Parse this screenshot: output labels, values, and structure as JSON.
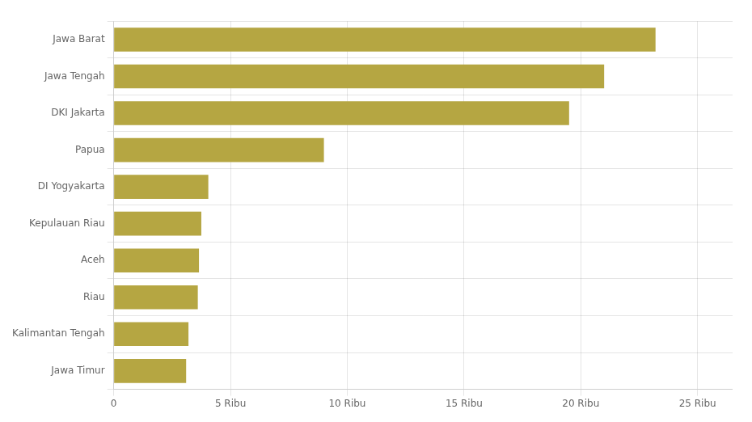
{
  "chart_data": {
    "type": "bar",
    "orientation": "horizontal",
    "categories": [
      "Jawa Timur",
      "Kalimantan Tengah",
      "Riau",
      "Aceh",
      "Kepulauan Riau",
      "DI Yogyakarta",
      "Papua",
      "DKI Jakarta",
      "Jawa Tengah",
      "Jawa Barat"
    ],
    "values": [
      3100,
      3200,
      3600,
      3650,
      3750,
      4050,
      9000,
      19500,
      21000,
      23200
    ],
    "color": "#b5a642",
    "xlim": [
      0,
      26500
    ],
    "xticks": [
      0,
      {
        "value": 5000,
        "label": "5 Ribu"
      },
      {
        "value": 10000,
        "label": "10 Ribu"
      },
      {
        "value": 15000,
        "label": "15 Ribu"
      },
      {
        "value": 20000,
        "label": "20 Ribu"
      },
      {
        "value": 25000,
        "label": "25 Ribu"
      }
    ],
    "grid": true
  }
}
